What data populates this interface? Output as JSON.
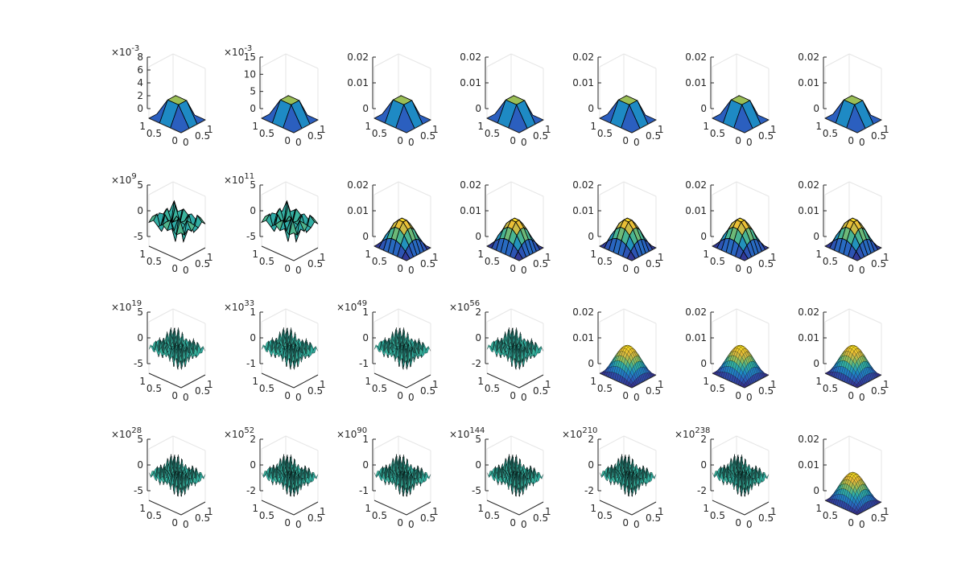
{
  "chart_data": {
    "type": "surface-grid",
    "rows": 4,
    "cols": 7,
    "surface": "peak",
    "x_ticks": [
      "0",
      "0.5",
      "1"
    ],
    "y_ticks": [
      "0",
      "0.5",
      "1"
    ],
    "colormap": [
      "#352a87",
      "#2b5fbf",
      "#1e8ac4",
      "#33b1a1",
      "#9bbf57",
      "#e8b93a",
      "#f9e21e"
    ],
    "panels": [
      {
        "row": 0,
        "col": 0,
        "shape": "pyramid",
        "mesh": 3,
        "exponent": "-3",
        "zticks": [
          "0",
          "2",
          "4",
          "6",
          "8"
        ],
        "zrange": [
          0,
          8
        ]
      },
      {
        "row": 0,
        "col": 1,
        "shape": "pyramid",
        "mesh": 3,
        "exponent": "-3",
        "zticks": [
          "0",
          "5",
          "10",
          "15"
        ],
        "zrange": [
          0,
          15
        ]
      },
      {
        "row": 0,
        "col": 2,
        "shape": "pyramid",
        "mesh": 3,
        "exponent": "",
        "zticks": [
          "0",
          "0.01",
          "0.02"
        ],
        "zrange": [
          0,
          0.02
        ]
      },
      {
        "row": 0,
        "col": 3,
        "shape": "pyramid",
        "mesh": 3,
        "exponent": "",
        "zticks": [
          "0",
          "0.01",
          "0.02"
        ],
        "zrange": [
          0,
          0.02
        ]
      },
      {
        "row": 0,
        "col": 4,
        "shape": "pyramid",
        "mesh": 3,
        "exponent": "",
        "zticks": [
          "0",
          "0.01",
          "0.02"
        ],
        "zrange": [
          0,
          0.02
        ]
      },
      {
        "row": 0,
        "col": 5,
        "shape": "pyramid",
        "mesh": 3,
        "exponent": "",
        "zticks": [
          "0",
          "0.01",
          "0.02"
        ],
        "zrange": [
          0,
          0.02
        ]
      },
      {
        "row": 0,
        "col": 6,
        "shape": "pyramid",
        "mesh": 3,
        "exponent": "",
        "zticks": [
          "0",
          "0.01",
          "0.02"
        ],
        "zrange": [
          0,
          0.02
        ]
      },
      {
        "row": 1,
        "col": 0,
        "shape": "oscillate",
        "mesh": 7,
        "exponent": "9",
        "zticks": [
          "-5",
          "0",
          "5"
        ],
        "zrange": [
          -5,
          5
        ]
      },
      {
        "row": 1,
        "col": 1,
        "shape": "oscillate",
        "mesh": 7,
        "exponent": "11",
        "zticks": [
          "-5",
          "0",
          "5"
        ],
        "zrange": [
          -5,
          5
        ]
      },
      {
        "row": 1,
        "col": 2,
        "shape": "bump",
        "mesh": 7,
        "exponent": "",
        "zticks": [
          "0",
          "0.01",
          "0.02"
        ],
        "zrange": [
          0,
          0.02
        ]
      },
      {
        "row": 1,
        "col": 3,
        "shape": "bump",
        "mesh": 7,
        "exponent": "",
        "zticks": [
          "0",
          "0.01",
          "0.02"
        ],
        "zrange": [
          0,
          0.02
        ]
      },
      {
        "row": 1,
        "col": 4,
        "shape": "bump",
        "mesh": 7,
        "exponent": "",
        "zticks": [
          "0",
          "0.01",
          "0.02"
        ],
        "zrange": [
          0,
          0.02
        ]
      },
      {
        "row": 1,
        "col": 5,
        "shape": "bump",
        "mesh": 7,
        "exponent": "",
        "zticks": [
          "0",
          "0.01",
          "0.02"
        ],
        "zrange": [
          0,
          0.02
        ]
      },
      {
        "row": 1,
        "col": 6,
        "shape": "bump",
        "mesh": 7,
        "exponent": "",
        "zticks": [
          "0",
          "0.01",
          "0.02"
        ],
        "zrange": [
          0,
          0.02
        ]
      },
      {
        "row": 2,
        "col": 0,
        "shape": "oscillate",
        "mesh": 15,
        "exponent": "19",
        "zticks": [
          "-5",
          "0",
          "5"
        ],
        "zrange": [
          -5,
          5
        ]
      },
      {
        "row": 2,
        "col": 1,
        "shape": "oscillate",
        "mesh": 15,
        "exponent": "33",
        "zticks": [
          "-1",
          "0",
          "1"
        ],
        "zrange": [
          -1,
          1
        ]
      },
      {
        "row": 2,
        "col": 2,
        "shape": "oscillate",
        "mesh": 15,
        "exponent": "49",
        "zticks": [
          "-1",
          "0",
          "1"
        ],
        "zrange": [
          -1,
          1
        ]
      },
      {
        "row": 2,
        "col": 3,
        "shape": "oscillate",
        "mesh": 15,
        "exponent": "56",
        "zticks": [
          "-2",
          "0",
          "2"
        ],
        "zrange": [
          -2,
          2
        ]
      },
      {
        "row": 2,
        "col": 4,
        "shape": "bump",
        "mesh": 15,
        "exponent": "",
        "zticks": [
          "0",
          "0.01",
          "0.02"
        ],
        "zrange": [
          0,
          0.02
        ]
      },
      {
        "row": 2,
        "col": 5,
        "shape": "bump",
        "mesh": 15,
        "exponent": "",
        "zticks": [
          "0",
          "0.01",
          "0.02"
        ],
        "zrange": [
          0,
          0.02
        ]
      },
      {
        "row": 2,
        "col": 6,
        "shape": "bump",
        "mesh": 15,
        "exponent": "",
        "zticks": [
          "0",
          "0.01",
          "0.02"
        ],
        "zrange": [
          0,
          0.02
        ]
      },
      {
        "row": 3,
        "col": 0,
        "shape": "oscillate",
        "mesh": 31,
        "exponent": "28",
        "zticks": [
          "-5",
          "0",
          "5"
        ],
        "zrange": [
          -5,
          5
        ]
      },
      {
        "row": 3,
        "col": 1,
        "shape": "oscillate",
        "mesh": 31,
        "exponent": "52",
        "zticks": [
          "-2",
          "0",
          "2"
        ],
        "zrange": [
          -2,
          2
        ]
      },
      {
        "row": 3,
        "col": 2,
        "shape": "oscillate",
        "mesh": 31,
        "exponent": "90",
        "zticks": [
          "-1",
          "0",
          "1"
        ],
        "zrange": [
          -1,
          1
        ]
      },
      {
        "row": 3,
        "col": 3,
        "shape": "oscillate",
        "mesh": 31,
        "exponent": "144",
        "zticks": [
          "-5",
          "0",
          "5"
        ],
        "zrange": [
          -5,
          5
        ]
      },
      {
        "row": 3,
        "col": 4,
        "shape": "oscillate",
        "mesh": 31,
        "exponent": "210",
        "zticks": [
          "-2",
          "0",
          "2"
        ],
        "zrange": [
          -2,
          2
        ]
      },
      {
        "row": 3,
        "col": 5,
        "shape": "oscillate",
        "mesh": 31,
        "exponent": "238",
        "zticks": [
          "-2",
          "0",
          "2"
        ],
        "zrange": [
          -2,
          2
        ]
      },
      {
        "row": 3,
        "col": 6,
        "shape": "bump",
        "mesh": 31,
        "exponent": "",
        "zticks": [
          "0",
          "0.01",
          "0.02"
        ],
        "zrange": [
          0,
          0.02
        ]
      }
    ]
  }
}
